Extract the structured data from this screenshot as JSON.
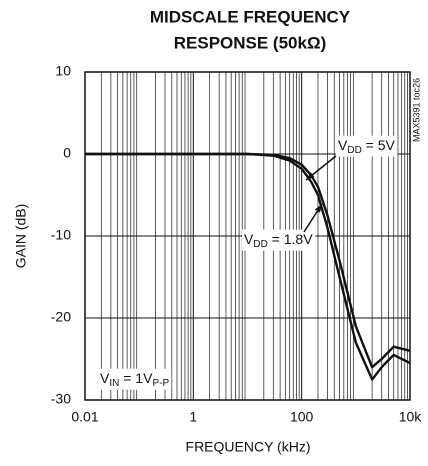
{
  "chart_data": {
    "type": "line",
    "title": [
      "MIDSCALE FREQUENCY",
      "RESPONSE (50kΩ)"
    ],
    "side_note": "MAX5391 toc26",
    "x_label": "FREQUENCY (kHz)",
    "y_label": "GAIN (dB)",
    "x_log": true,
    "grid": true,
    "xlim": [
      0.01,
      10000
    ],
    "ylim": [
      -30,
      10
    ],
    "xticks": [
      0.01,
      1,
      100,
      {
        "value": 10000,
        "label": "10k"
      }
    ],
    "yticks": [
      -30,
      -20,
      -10,
      0,
      10
    ],
    "x": [
      0.01,
      0.1,
      1,
      10,
      30,
      60,
      100,
      150,
      200,
      300,
      500,
      1000,
      2000,
      3000,
      5000,
      10000
    ],
    "series": [
      {
        "name": [
          "V",
          "DD",
          " = 5V"
        ],
        "color": "#111111",
        "values": [
          0,
          0,
          0,
          0,
          -0.1,
          -0.5,
          -1.3,
          -2.6,
          -4,
          -7.5,
          -13,
          -21,
          -26,
          -25,
          -23.5,
          -24
        ]
      },
      {
        "name": [
          "V",
          "DD",
          " = 1.8V"
        ],
        "color": "#111111",
        "values": [
          0,
          0,
          0,
          0,
          -0.2,
          -0.8,
          -1.8,
          -3.4,
          -5,
          -9,
          -15,
          -23,
          -27.5,
          -26,
          -24.5,
          -25.5
        ]
      }
    ],
    "note": [
      "V",
      "IN",
      " = 1V",
      "P-P"
    ]
  }
}
